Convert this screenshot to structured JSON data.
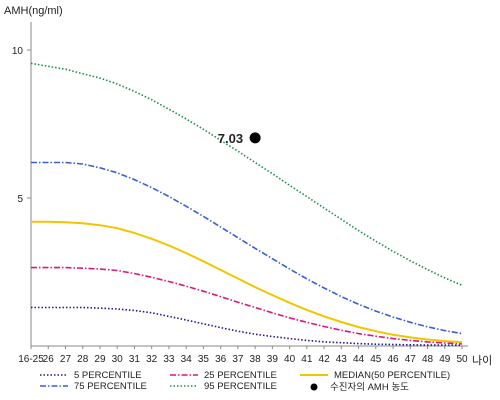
{
  "chart_data": {
    "type": "line",
    "ylabel": "AMH(ng/ml)",
    "xlabel": "나이",
    "categories": [
      "16-25",
      "26",
      "27",
      "28",
      "29",
      "30",
      "31",
      "32",
      "33",
      "34",
      "35",
      "36",
      "37",
      "38",
      "39",
      "40",
      "41",
      "42",
      "43",
      "44",
      "45",
      "46",
      "47",
      "48",
      "49",
      "50"
    ],
    "y_ticks": [
      "10",
      "5"
    ],
    "ylim": [
      0,
      10.5
    ],
    "grid": false,
    "legend_position": "bottom",
    "series": [
      {
        "name": "5 PERCENTILE",
        "color": "#1a1a8c",
        "dash": "dotted",
        "values": [
          1.3,
          1.3,
          1.3,
          1.3,
          1.28,
          1.25,
          1.2,
          1.12,
          1.0,
          0.88,
          0.75,
          0.62,
          0.5,
          0.4,
          0.32,
          0.25,
          0.19,
          0.14,
          0.11,
          0.08,
          0.06,
          0.05,
          0.04,
          0.03,
          0.03,
          0.02
        ]
      },
      {
        "name": "25 PERCENTILE",
        "color": "#e0147c",
        "dash": "dashdot",
        "values": [
          2.65,
          2.65,
          2.65,
          2.63,
          2.6,
          2.55,
          2.45,
          2.32,
          2.18,
          2.02,
          1.85,
          1.67,
          1.48,
          1.3,
          1.12,
          0.95,
          0.8,
          0.66,
          0.53,
          0.42,
          0.33,
          0.25,
          0.19,
          0.14,
          0.1,
          0.07
        ]
      },
      {
        "name": "MEDIAN(50 PERCENTILE)",
        "color": "#f2c500",
        "dash": "solid",
        "values": [
          4.2,
          4.2,
          4.18,
          4.15,
          4.08,
          3.98,
          3.82,
          3.62,
          3.4,
          3.14,
          2.86,
          2.57,
          2.28,
          1.99,
          1.72,
          1.46,
          1.22,
          1.0,
          0.81,
          0.64,
          0.5,
          0.38,
          0.29,
          0.22,
          0.17,
          0.13
        ]
      },
      {
        "name": "75 PERCENTILE",
        "color": "#3a5fd0",
        "dash": "dashdot",
        "values": [
          6.2,
          6.2,
          6.2,
          6.15,
          6.02,
          5.85,
          5.62,
          5.35,
          5.05,
          4.72,
          4.38,
          4.02,
          3.66,
          3.3,
          2.95,
          2.6,
          2.27,
          1.96,
          1.67,
          1.41,
          1.18,
          0.98,
          0.8,
          0.65,
          0.52,
          0.42
        ]
      },
      {
        "name": "95 PERCENTILE",
        "color": "#1c8a4a",
        "dash": "dotted",
        "values": [
          9.55,
          9.45,
          9.35,
          9.2,
          9.05,
          8.85,
          8.6,
          8.32,
          8.0,
          7.67,
          7.32,
          6.95,
          6.58,
          6.2,
          5.82,
          5.43,
          5.05,
          4.66,
          4.28,
          3.9,
          3.54,
          3.2,
          2.88,
          2.58,
          2.3,
          2.05
        ]
      }
    ],
    "marker": {
      "legend": "수진자의 AMH 농도",
      "x": "38",
      "y": 7.03,
      "label": "7.03",
      "color": "#000000"
    }
  }
}
